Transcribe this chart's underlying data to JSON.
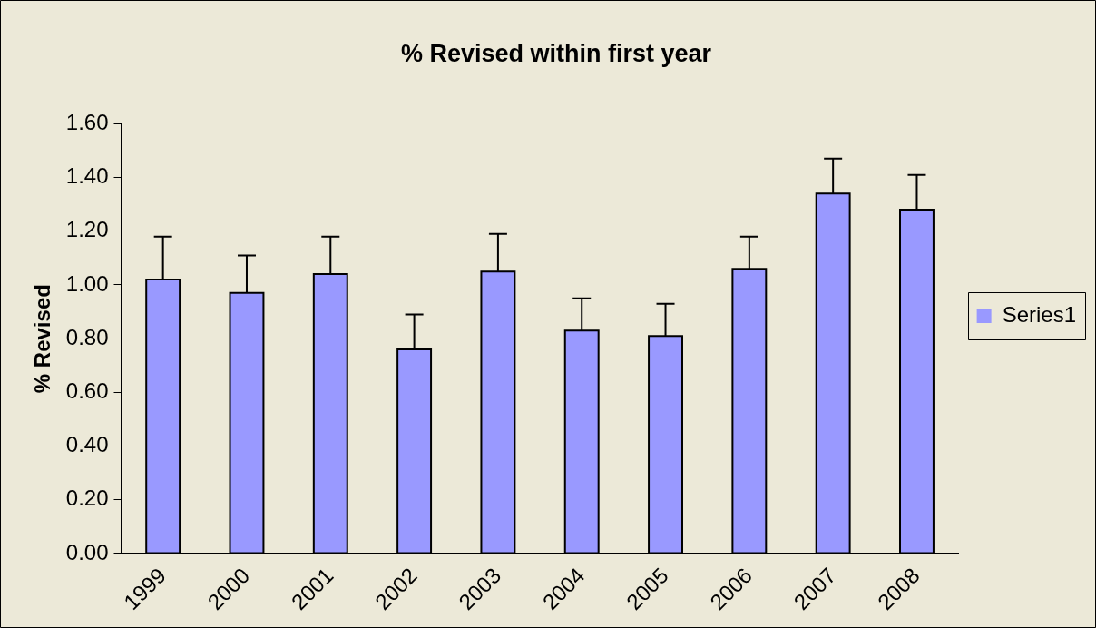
{
  "chart_data": {
    "type": "bar",
    "title": "% Revised within first year",
    "ylabel": "% Revised",
    "categories": [
      "1999",
      "2000",
      "2001",
      "2002",
      "2003",
      "2004",
      "2005",
      "2006",
      "2007",
      "2008"
    ],
    "series": [
      {
        "name": "Series1",
        "color": "#9999ff",
        "values": [
          1.02,
          0.97,
          1.04,
          0.76,
          1.05,
          0.83,
          0.81,
          1.06,
          1.34,
          1.28
        ],
        "errors": [
          [
            1.02,
            1.18
          ],
          [
            0.97,
            1.11
          ],
          [
            1.04,
            1.18
          ],
          [
            0.76,
            0.89
          ],
          [
            1.05,
            1.19
          ],
          [
            0.83,
            0.95
          ],
          [
            0.81,
            0.93
          ],
          [
            1.06,
            1.18
          ],
          [
            1.34,
            1.47
          ],
          [
            1.28,
            1.41
          ]
        ]
      }
    ],
    "ylim": [
      0,
      1.6
    ],
    "yticks": [
      {
        "value": 0,
        "label": "0.00"
      },
      {
        "value": 0.2,
        "label": "0.20"
      },
      {
        "value": 0.4,
        "label": "0.40"
      },
      {
        "value": 0.6,
        "label": "0.60"
      },
      {
        "value": 0.8,
        "label": "0.80"
      },
      {
        "value": 1,
        "label": "1.00"
      },
      {
        "value": 1.2,
        "label": "1.20"
      },
      {
        "value": 1.4,
        "label": "1.40"
      },
      {
        "value": 1.6,
        "label": "1.60"
      }
    ],
    "grid": false,
    "legend": "right"
  }
}
